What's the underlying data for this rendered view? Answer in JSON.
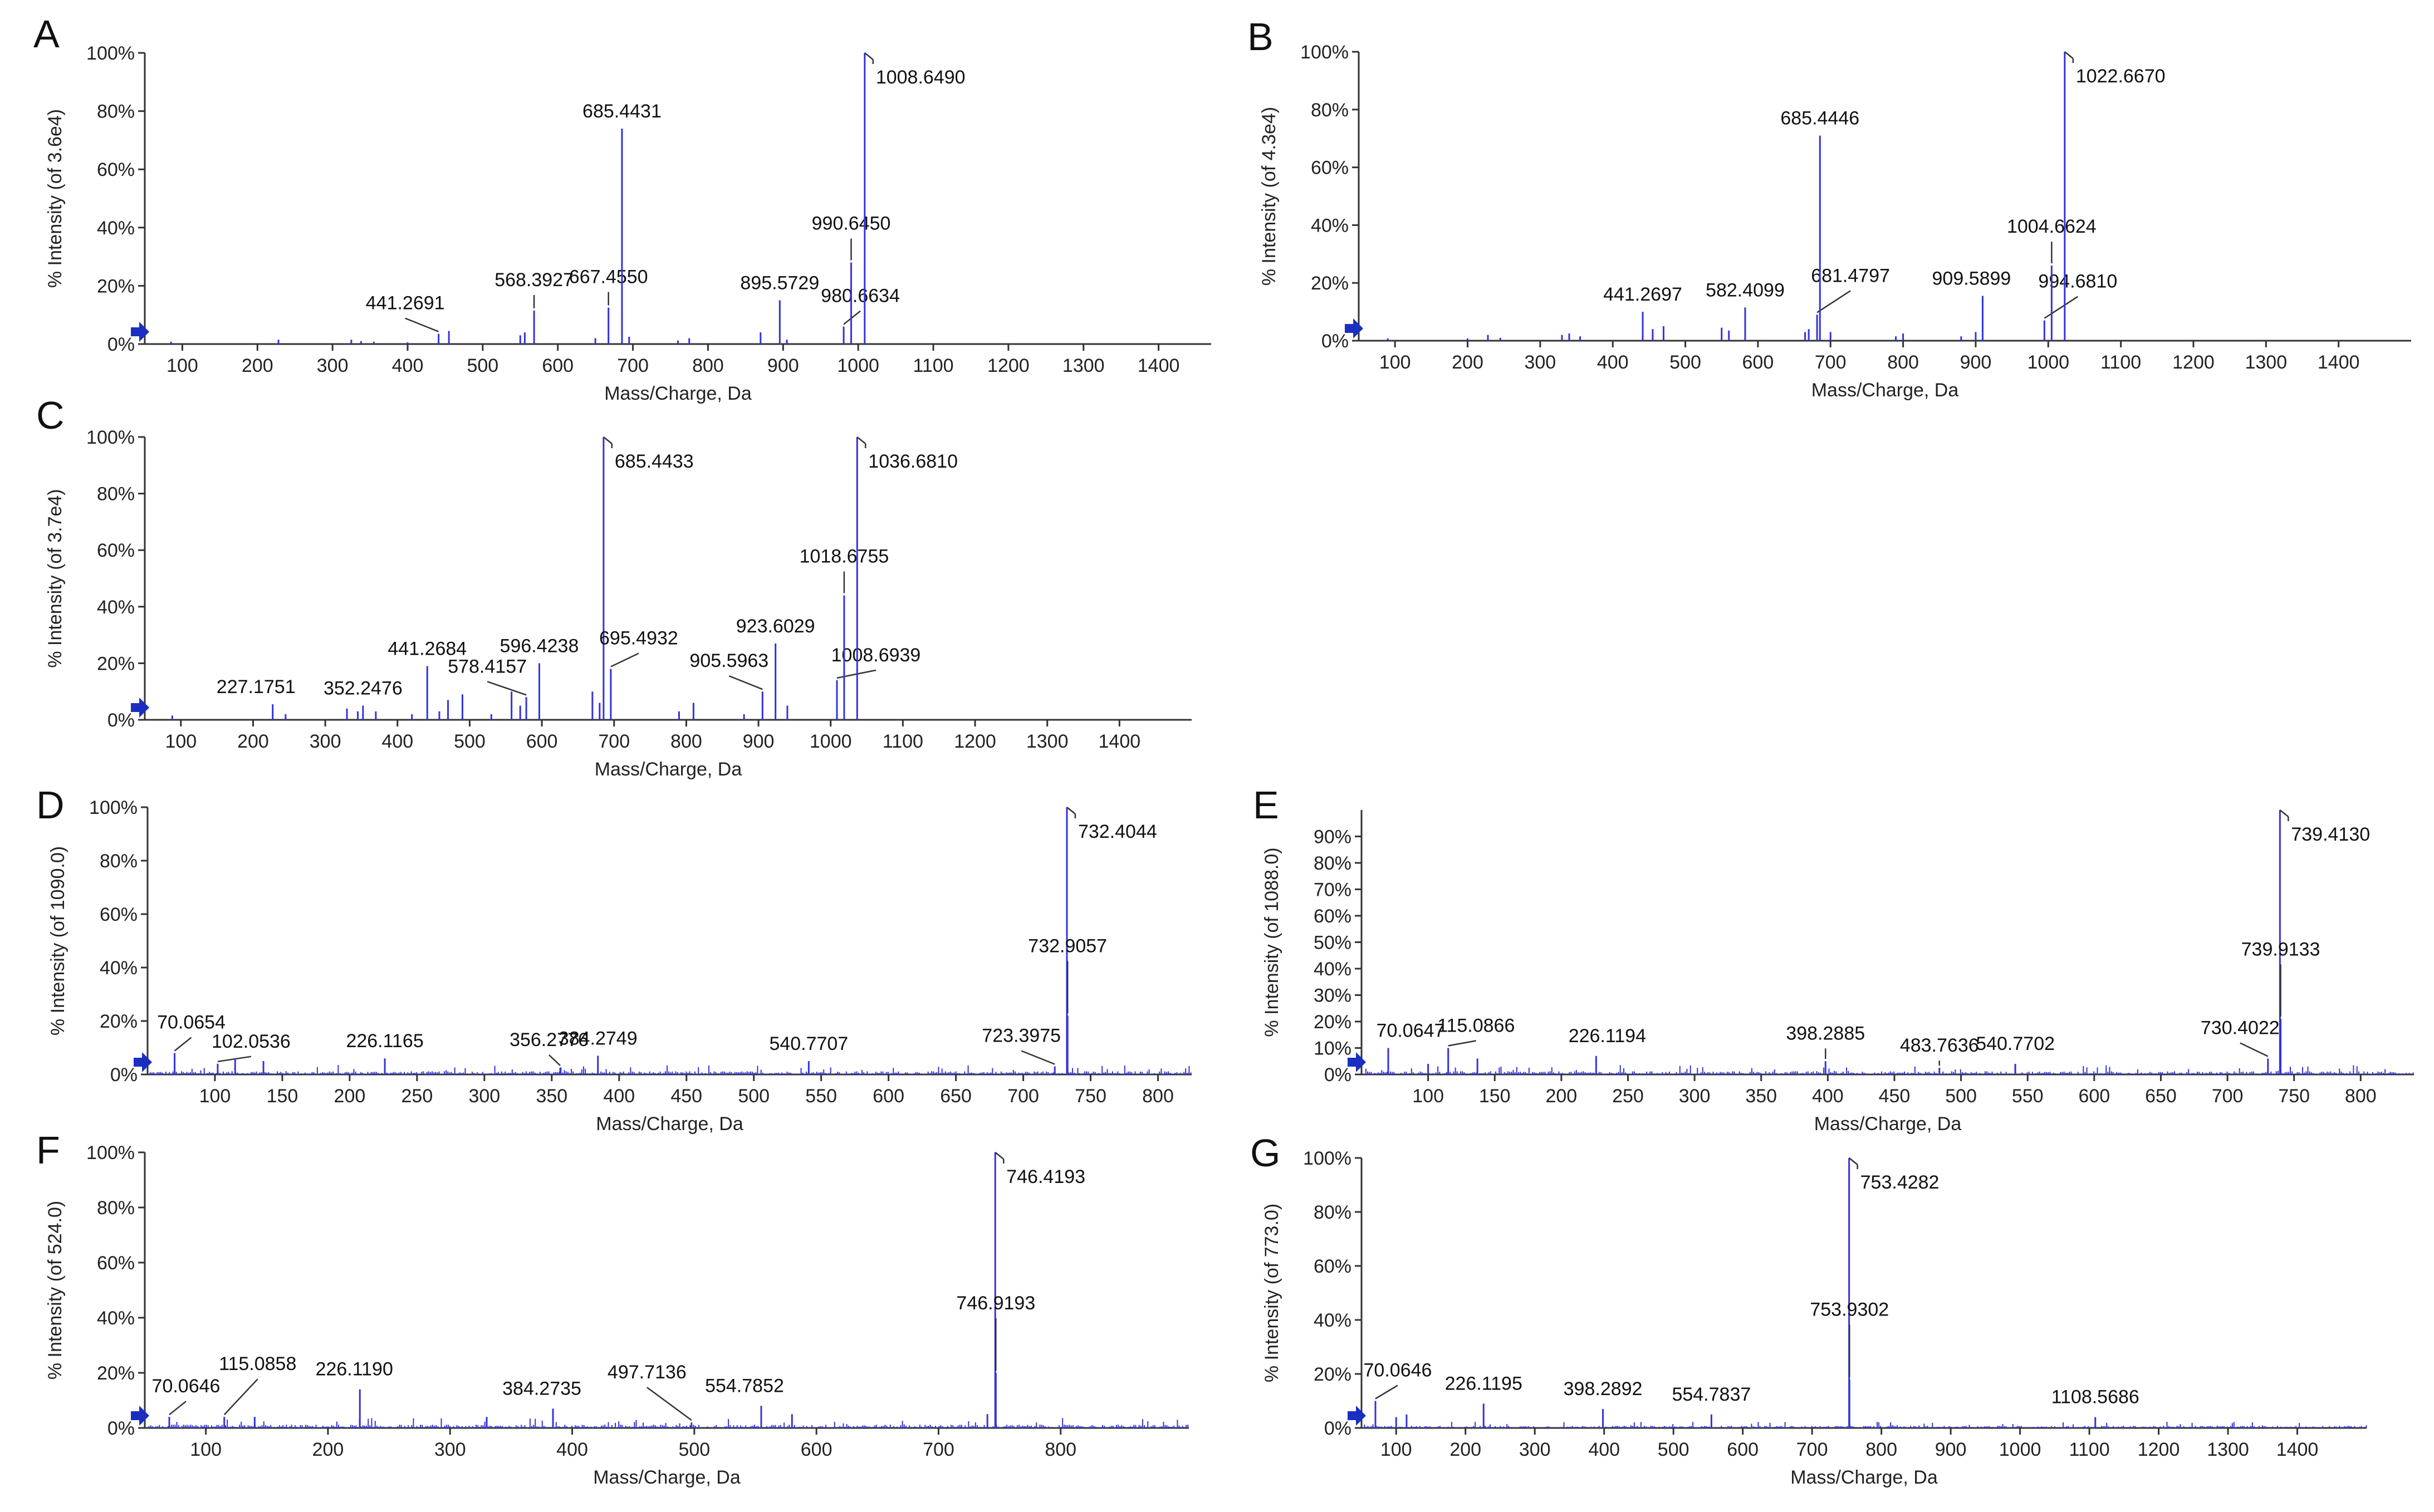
{
  "figure": {
    "description_none": ""
  },
  "chart_data": [
    {
      "panel": "A",
      "type": "bar",
      "xlabel": "Mass/Charge, Da",
      "ylabel": "% Intensity (of 3.6e4)",
      "xlim": [
        50,
        1470
      ],
      "ylim": [
        0,
        100
      ],
      "xticks": [
        100,
        200,
        300,
        400,
        500,
        600,
        700,
        800,
        900,
        1000,
        1100,
        1200,
        1300,
        1400
      ],
      "yticks": [
        0,
        20,
        40,
        60,
        80,
        100
      ],
      "bar_color": "#3333dd",
      "peaks": [
        {
          "x": 85,
          "y": 0.8
        },
        {
          "x": 228,
          "y": 1.5
        },
        {
          "x": 325,
          "y": 1.5
        },
        {
          "x": 338,
          "y": 1.0
        },
        {
          "x": 355,
          "y": 0.8
        },
        {
          "x": 400,
          "y": 0.6
        },
        {
          "x": 441.2691,
          "y": 3.5,
          "label": "441.2691"
        },
        {
          "x": 455,
          "y": 4.5
        },
        {
          "x": 550,
          "y": 3
        },
        {
          "x": 556,
          "y": 4
        },
        {
          "x": 568.3927,
          "y": 11.5,
          "label": "568.3927"
        },
        {
          "x": 650,
          "y": 2
        },
        {
          "x": 667.455,
          "y": 12.5,
          "label": "667.4550"
        },
        {
          "x": 685.4431,
          "y": 74,
          "label": "685.4431"
        },
        {
          "x": 695,
          "y": 2.5
        },
        {
          "x": 760,
          "y": 1.2
        },
        {
          "x": 775,
          "y": 2
        },
        {
          "x": 870,
          "y": 4
        },
        {
          "x": 895.5729,
          "y": 15,
          "label": "895.5729"
        },
        {
          "x": 905,
          "y": 1.5
        },
        {
          "x": 980.6634,
          "y": 6,
          "label": "980.6634"
        },
        {
          "x": 990.645,
          "y": 28,
          "label": "990.6450"
        },
        {
          "x": 1008.649,
          "y": 100,
          "label": "1008.6490"
        }
      ]
    },
    {
      "panel": "B",
      "type": "bar",
      "xlabel": "Mass/Charge, Da",
      "ylabel": "% Intensity (of 4.3e4)",
      "xlim": [
        50,
        1500
      ],
      "ylim": [
        0,
        100
      ],
      "xticks": [
        100,
        200,
        300,
        400,
        500,
        600,
        700,
        800,
        900,
        1000,
        1100,
        1200,
        1300,
        1400
      ],
      "yticks": [
        0,
        20,
        40,
        60,
        80,
        100
      ],
      "bar_color": "#3333dd",
      "peaks": [
        {
          "x": 90,
          "y": 0.8
        },
        {
          "x": 200,
          "y": 0.8
        },
        {
          "x": 228,
          "y": 2
        },
        {
          "x": 245,
          "y": 1
        },
        {
          "x": 330,
          "y": 2
        },
        {
          "x": 340,
          "y": 2.5
        },
        {
          "x": 355,
          "y": 1.5
        },
        {
          "x": 441.2697,
          "y": 10,
          "label": "441.2697"
        },
        {
          "x": 455,
          "y": 4
        },
        {
          "x": 470,
          "y": 5
        },
        {
          "x": 550,
          "y": 4.5
        },
        {
          "x": 560,
          "y": 3.5
        },
        {
          "x": 582.4099,
          "y": 11.5,
          "label": "582.4099"
        },
        {
          "x": 665,
          "y": 3
        },
        {
          "x": 670,
          "y": 4
        },
        {
          "x": 681.4797,
          "y": 9,
          "label": "681.4797"
        },
        {
          "x": 685.4446,
          "y": 71,
          "label": "685.4446"
        },
        {
          "x": 700,
          "y": 3
        },
        {
          "x": 790,
          "y": 1.5
        },
        {
          "x": 800,
          "y": 2.5
        },
        {
          "x": 880,
          "y": 1.5
        },
        {
          "x": 900,
          "y": 3
        },
        {
          "x": 909.5899,
          "y": 15.5,
          "label": "909.5899"
        },
        {
          "x": 994.681,
          "y": 7,
          "label": "994.6810"
        },
        {
          "x": 1004.6624,
          "y": 26,
          "label": "1004.6624"
        },
        {
          "x": 1022.667,
          "y": 100,
          "label": "1022.6670"
        }
      ]
    },
    {
      "panel": "C",
      "type": "bar",
      "xlabel": "Mass/Charge, Da",
      "ylabel": "% Intensity (of 3.7e4)",
      "xlim": [
        50,
        1500
      ],
      "ylim": [
        0,
        100
      ],
      "xticks": [
        100,
        200,
        300,
        400,
        500,
        600,
        700,
        800,
        900,
        1000,
        1100,
        1200,
        1300,
        1400
      ],
      "yticks": [
        0,
        20,
        40,
        60,
        80,
        100
      ],
      "bar_color": "#3333dd",
      "peaks": [
        {
          "x": 88,
          "y": 1.5
        },
        {
          "x": 227.1751,
          "y": 5.5,
          "label": "227.1751"
        },
        {
          "x": 245,
          "y": 2
        },
        {
          "x": 330,
          "y": 4
        },
        {
          "x": 345,
          "y": 3
        },
        {
          "x": 352.2476,
          "y": 5,
          "label": "352.2476"
        },
        {
          "x": 370,
          "y": 3
        },
        {
          "x": 420,
          "y": 2
        },
        {
          "x": 441.2684,
          "y": 19,
          "label": "441.2684"
        },
        {
          "x": 458,
          "y": 3
        },
        {
          "x": 470,
          "y": 7
        },
        {
          "x": 490,
          "y": 9
        },
        {
          "x": 530,
          "y": 2
        },
        {
          "x": 558,
          "y": 10
        },
        {
          "x": 570,
          "y": 5
        },
        {
          "x": 578.4157,
          "y": 8,
          "label": "578.4157"
        },
        {
          "x": 596.4238,
          "y": 20,
          "label": "596.4238"
        },
        {
          "x": 670,
          "y": 10
        },
        {
          "x": 680,
          "y": 6
        },
        {
          "x": 685.4433,
          "y": 100,
          "label": "685.4433"
        },
        {
          "x": 695.4932,
          "y": 18,
          "label": "695.4932"
        },
        {
          "x": 790,
          "y": 3
        },
        {
          "x": 810,
          "y": 6
        },
        {
          "x": 880,
          "y": 2
        },
        {
          "x": 905.5963,
          "y": 10,
          "label": "905.5963"
        },
        {
          "x": 923.6029,
          "y": 27,
          "label": "923.6029"
        },
        {
          "x": 940,
          "y": 5
        },
        {
          "x": 1008.6939,
          "y": 14,
          "label": "1008.6939"
        },
        {
          "x": 1018.6755,
          "y": 44,
          "label": "1018.6755"
        },
        {
          "x": 1036.681,
          "y": 100,
          "label": "1036.6810"
        }
      ]
    },
    {
      "panel": "D",
      "type": "bar",
      "xlabel": "Mass/Charge, Da",
      "ylabel": "% Intensity (of 1090.0)",
      "xlim": [
        50,
        825
      ],
      "ylim": [
        0,
        100
      ],
      "xticks": [
        100,
        150,
        200,
        250,
        300,
        350,
        400,
        450,
        500,
        550,
        600,
        650,
        700,
        750,
        800
      ],
      "yticks": [
        0,
        20,
        40,
        60,
        80,
        100
      ],
      "bar_color": "#3333dd",
      "peaks": [
        {
          "x": 70.0654,
          "y": 8,
          "label": "70.0654"
        },
        {
          "x": 102.0536,
          "y": 4,
          "label": "102.0536"
        },
        {
          "x": 115,
          "y": 6
        },
        {
          "x": 136,
          "y": 5
        },
        {
          "x": 226.1165,
          "y": 6,
          "label": "226.1165"
        },
        {
          "x": 356.2776,
          "y": 2.5,
          "label": "356.2776"
        },
        {
          "x": 384.2749,
          "y": 7,
          "label": "384.2749"
        },
        {
          "x": 540.7707,
          "y": 5,
          "label": "540.7707"
        },
        {
          "x": 723.3975,
          "y": 3,
          "label": "723.3975"
        },
        {
          "x": 732.4044,
          "y": 100,
          "label": "732.4044"
        },
        {
          "x": 732.9057,
          "y": 22,
          "label": "732.9057"
        }
      ]
    },
    {
      "panel": "E",
      "type": "bar",
      "xlabel": "Mass/Charge, Da",
      "ylabel": "% Intensity (of 1088.0)",
      "xlim": [
        50,
        840
      ],
      "ylim": [
        0,
        100
      ],
      "xticks": [
        100,
        150,
        200,
        250,
        300,
        350,
        400,
        450,
        500,
        550,
        600,
        650,
        700,
        750,
        800
      ],
      "yticks": [
        0,
        10,
        20,
        30,
        40,
        50,
        60,
        70,
        80,
        90
      ],
      "ytick_labels": [
        "0%",
        "10%",
        "20%",
        "30%",
        "40%",
        "50%",
        "60%",
        "70%",
        "80%",
        "90%"
      ],
      "bar_color": "#3333dd",
      "peaks": [
        {
          "x": 70.0647,
          "y": 10,
          "label": "70.0647"
        },
        {
          "x": 100,
          "y": 4
        },
        {
          "x": 115.0866,
          "y": 10,
          "label": "115.0866"
        },
        {
          "x": 137,
          "y": 6
        },
        {
          "x": 226.1194,
          "y": 7,
          "label": "226.1194"
        },
        {
          "x": 398.2885,
          "y": 5,
          "label": "398.2885"
        },
        {
          "x": 483.7636,
          "y": 2.5,
          "label": "483.7636"
        },
        {
          "x": 540.7702,
          "y": 4,
          "label": "540.7702"
        },
        {
          "x": 730.4022,
          "y": 6,
          "label": "730.4022"
        },
        {
          "x": 739.413,
          "y": 100,
          "label": "739.4130"
        },
        {
          "x": 739.9133,
          "y": 21,
          "label": "739.9133"
        }
      ]
    },
    {
      "panel": "F",
      "type": "bar",
      "xlabel": "Mass/Charge, Da",
      "ylabel": "% Intensity (of 524.0)",
      "xlim": [
        50,
        905
      ],
      "ylim": [
        0,
        100
      ],
      "xticks": [
        100,
        200,
        300,
        400,
        500,
        600,
        700,
        800
      ],
      "yticks": [
        0,
        20,
        40,
        60,
        80,
        100
      ],
      "bar_color": "#3333dd",
      "peaks": [
        {
          "x": 70.0646,
          "y": 4,
          "label": "70.0646"
        },
        {
          "x": 115.0858,
          "y": 4,
          "label": "115.0858"
        },
        {
          "x": 140,
          "y": 4
        },
        {
          "x": 226.119,
          "y": 14,
          "label": "226.1190"
        },
        {
          "x": 330,
          "y": 4
        },
        {
          "x": 384.2735,
          "y": 7,
          "label": "384.2735"
        },
        {
          "x": 497.7136,
          "y": 2,
          "label": "497.7136"
        },
        {
          "x": 554.7852,
          "y": 8,
          "label": "554.7852"
        },
        {
          "x": 580,
          "y": 5
        },
        {
          "x": 740,
          "y": 5
        },
        {
          "x": 746.4193,
          "y": 100,
          "label": "746.4193"
        },
        {
          "x": 746.9193,
          "y": 20,
          "label": "746.9193"
        }
      ]
    },
    {
      "panel": "G",
      "type": "bar",
      "xlabel": "Mass/Charge, Da",
      "ylabel": "% Intensity (of 773.0)",
      "xlim": [
        50,
        1500
      ],
      "ylim": [
        0,
        100
      ],
      "xticks": [
        100,
        200,
        300,
        400,
        500,
        600,
        700,
        800,
        900,
        1000,
        1100,
        1200,
        1300,
        1400
      ],
      "yticks": [
        0,
        20,
        40,
        60,
        80,
        100
      ],
      "bar_color": "#3333dd",
      "peaks": [
        {
          "x": 70.0646,
          "y": 10,
          "label": "70.0646"
        },
        {
          "x": 100,
          "y": 4
        },
        {
          "x": 115,
          "y": 5
        },
        {
          "x": 226.1195,
          "y": 9,
          "label": "226.1195"
        },
        {
          "x": 398.2892,
          "y": 7,
          "label": "398.2892"
        },
        {
          "x": 554.7837,
          "y": 5,
          "label": "554.7837"
        },
        {
          "x": 753.4282,
          "y": 100,
          "label": "753.4282"
        },
        {
          "x": 753.9302,
          "y": 18,
          "label": "753.9302"
        },
        {
          "x": 1108.5686,
          "y": 4,
          "label": "1108.5686"
        }
      ]
    }
  ]
}
